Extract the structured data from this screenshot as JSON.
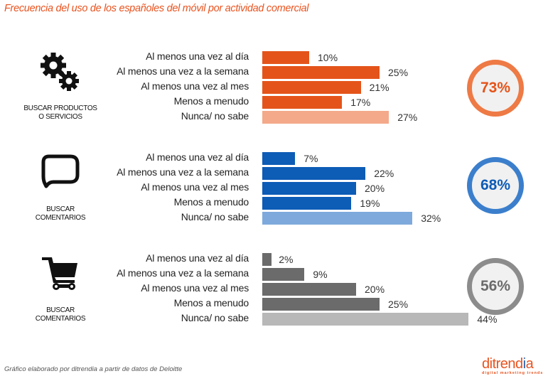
{
  "title": "Frecuencia del uso de los españoles del móvil por actividad comercial",
  "footer": "Gráfico elaborado por ditrendia a partir de datos de Deloitte",
  "logo": {
    "main_a": "ditrend",
    "main_b": "i",
    "main_c": "a",
    "sub": "digital marketing trends"
  },
  "chart_data": {
    "type": "bar",
    "orientation": "horizontal",
    "title": "Frecuencia del uso de los españoles del móvil por actividad comercial",
    "unit": "%",
    "categories": [
      "Al menos una vez al día",
      "Al menos una vez a la semana",
      "Al menos una vez al mes",
      "Menos a menudo",
      "Nunca/ no sabe"
    ],
    "groups": [
      {
        "label_line1": "BUSCAR PRODUCTOS",
        "label_line2": "O SERVICIOS",
        "icon": "gears-icon",
        "values": [
          10,
          25,
          21,
          17,
          27
        ],
        "value_labels": [
          "10%",
          "25%",
          "21%",
          "17%",
          "27%"
        ],
        "total": "73%",
        "color": "#e4541a",
        "light_color": "#f3a98a",
        "ring_color": "#ee7a45",
        "total_color": "#e4541a"
      },
      {
        "label_line1": "BUSCAR",
        "label_line2": "COMENTARIOS",
        "icon": "speech-bubble-icon",
        "values": [
          7,
          22,
          20,
          19,
          32
        ],
        "value_labels": [
          "7%",
          "22%",
          "20%",
          "19%",
          "32%"
        ],
        "total": "68%",
        "color": "#0d5cb6",
        "light_color": "#7ea9dc",
        "ring_color": "#3b7fcc",
        "total_color": "#0d5cb6"
      },
      {
        "label_line1": "BUSCAR",
        "label_line2": "COMENTARIOS",
        "icon": "shopping-cart-icon",
        "values": [
          2,
          9,
          20,
          25,
          44
        ],
        "value_labels": [
          "2%",
          "9%",
          "20%",
          "25%",
          "44%"
        ],
        "total": "56%",
        "color": "#6b6b6b",
        "light_color": "#b8b8b8",
        "ring_color": "#8c8c8c",
        "total_color": "#6b6b6b"
      }
    ]
  }
}
